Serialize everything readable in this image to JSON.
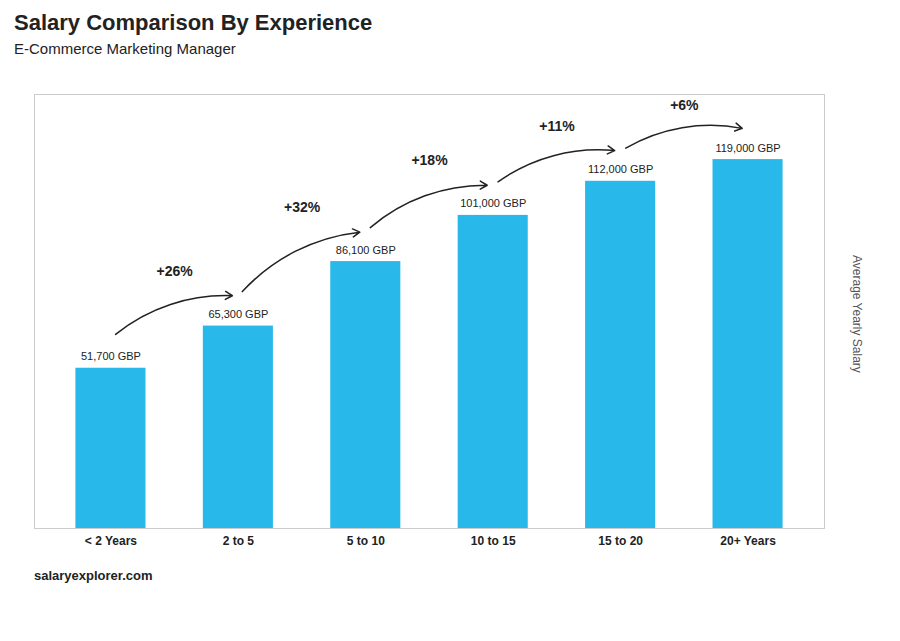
{
  "chart_data": {
    "type": "bar",
    "title": "Salary Comparison By Experience",
    "subtitle": "E-Commerce Marketing Manager",
    "ylabel": "Average Yearly Salary",
    "caption": "salaryexplorer.com",
    "categories": [
      "< 2 Years",
      "2 to 5",
      "5 to 10",
      "10 to 15",
      "15 to 20",
      "20+ Years"
    ],
    "values": [
      51700,
      65300,
      86100,
      101000,
      112000,
      119000
    ],
    "value_labels": [
      "51,700 GBP",
      "65,300 GBP",
      "86,100 GBP",
      "101,000 GBP",
      "112,000 GBP",
      "119,000 GBP"
    ],
    "data_labels": true,
    "color": "#29b8ea",
    "ylim": [
      0,
      140000
    ],
    "tick_labels": "x",
    "grid": false,
    "annotations": [
      {
        "text": "+26%",
        "from": "< 2 Years",
        "to": "2 to 5"
      },
      {
        "text": "+32%",
        "from": "2 to 5",
        "to": "5 to 10"
      },
      {
        "text": "+18%",
        "from": "5 to 10",
        "to": "10 to 15"
      },
      {
        "text": "+11%",
        "from": "10 to 15",
        "to": "15 to 20"
      },
      {
        "text": "+6%",
        "from": "15 to 20",
        "to": "20+ Years"
      }
    ]
  }
}
